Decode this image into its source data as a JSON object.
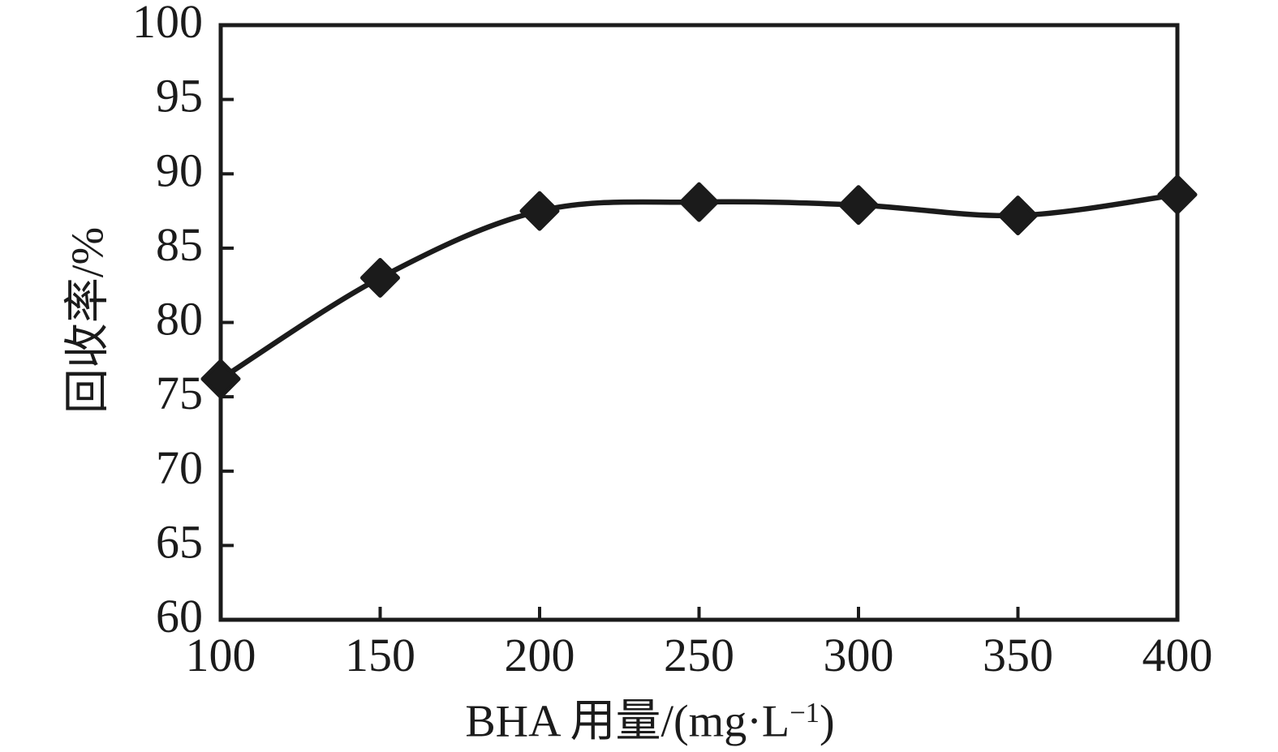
{
  "chart_data": {
    "type": "line",
    "title": "",
    "x": [
      100,
      150,
      200,
      250,
      300,
      350,
      400
    ],
    "series": [
      {
        "name": "回收率",
        "values": [
          76.2,
          83.0,
          87.5,
          88.1,
          87.9,
          87.2,
          88.6
        ]
      }
    ],
    "xlabel": {
      "pre": "BHA 用量/(mg·L",
      "sup": "−1",
      "post": ")"
    },
    "ylabel": "回收率/%",
    "xlim": [
      100,
      400
    ],
    "ylim": [
      60,
      100
    ],
    "x_ticks": [
      100,
      150,
      200,
      250,
      300,
      350,
      400
    ],
    "y_ticks": [
      60,
      65,
      70,
      75,
      80,
      85,
      90,
      95,
      100
    ],
    "marker": "diamond",
    "marker_color": "#1b1b1b",
    "line_color": "#1b1b1b",
    "background": "#ffffff",
    "grid": false,
    "legend": null
  }
}
